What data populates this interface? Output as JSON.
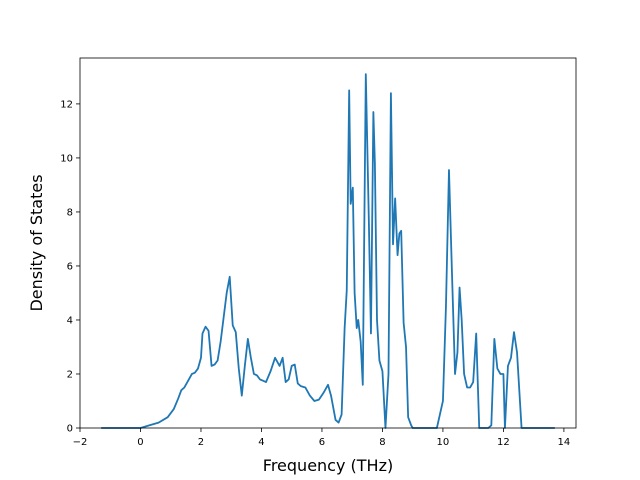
{
  "chart_data": {
    "type": "line",
    "title": "",
    "xlabel": "Frequency (THz)",
    "ylabel": "Density of States",
    "xlim": [
      -2.0,
      14.4
    ],
    "ylim": [
      0,
      13.7
    ],
    "xticks": [
      -2,
      0,
      2,
      4,
      6,
      8,
      10,
      12,
      14
    ],
    "yticks": [
      0,
      2,
      4,
      6,
      8,
      10,
      12
    ],
    "grid": false,
    "legend": "none",
    "line_color": "#1f77b4",
    "series": [
      {
        "x": [
          -1.3,
          -1.0,
          -0.5,
          0.0,
          0.3,
          0.6,
          0.9,
          1.1,
          1.25,
          1.35,
          1.45,
          1.55,
          1.7,
          1.8,
          1.9,
          2.0,
          2.05,
          2.15,
          2.25,
          2.35,
          2.45,
          2.55,
          2.65,
          2.75,
          2.85,
          2.95,
          3.05,
          3.15,
          3.25,
          3.35,
          3.45,
          3.55,
          3.65,
          3.75,
          3.85,
          3.95,
          4.05,
          4.15,
          4.3,
          4.45,
          4.6,
          4.7,
          4.8,
          4.9,
          5.0,
          5.1,
          5.2,
          5.3,
          5.45,
          5.6,
          5.75,
          5.9,
          6.05,
          6.2,
          6.3,
          6.45,
          6.55,
          6.65,
          6.75,
          6.82,
          6.9,
          6.95,
          7.02,
          7.08,
          7.15,
          7.2,
          7.28,
          7.35,
          7.45,
          7.55,
          7.62,
          7.7,
          7.75,
          7.82,
          7.9,
          8.0,
          8.1,
          8.2,
          8.28,
          8.35,
          8.42,
          8.5,
          8.56,
          8.62,
          8.7,
          8.78,
          8.85,
          8.95,
          9.0,
          9.1,
          9.2,
          9.4,
          9.6,
          9.8,
          10.0,
          10.1,
          10.2,
          10.3,
          10.4,
          10.48,
          10.55,
          10.62,
          10.7,
          10.8,
          10.9,
          11.0,
          11.1,
          11.2,
          11.3,
          11.5,
          11.6,
          11.7,
          11.8,
          11.9,
          12.0,
          12.05,
          12.15,
          12.25,
          12.35,
          12.45,
          12.6,
          13.0,
          13.5,
          13.7
        ],
        "y": [
          0,
          0,
          0,
          0,
          0.1,
          0.2,
          0.4,
          0.7,
          1.1,
          1.4,
          1.5,
          1.7,
          2.0,
          2.05,
          2.2,
          2.6,
          3.5,
          3.75,
          3.6,
          2.3,
          2.35,
          2.5,
          3.2,
          4.1,
          5.0,
          5.6,
          3.8,
          3.55,
          2.2,
          1.2,
          2.3,
          3.3,
          2.6,
          2.0,
          1.95,
          1.8,
          1.75,
          1.7,
          2.1,
          2.6,
          2.3,
          2.6,
          1.7,
          1.8,
          2.3,
          2.35,
          1.65,
          1.55,
          1.5,
          1.2,
          1.0,
          1.05,
          1.3,
          1.6,
          1.2,
          0.3,
          0.2,
          0.5,
          3.7,
          5.1,
          12.5,
          8.3,
          8.9,
          5.0,
          3.7,
          4.0,
          3.2,
          1.6,
          13.1,
          7.7,
          3.5,
          11.7,
          9.8,
          4.0,
          2.5,
          2.1,
          0,
          2.0,
          12.4,
          6.8,
          8.5,
          6.4,
          7.2,
          7.3,
          3.9,
          3.0,
          0.4,
          0.1,
          0,
          0,
          0,
          0,
          0,
          0,
          1.0,
          4.5,
          9.55,
          5.7,
          2.0,
          2.8,
          5.2,
          4.0,
          2.0,
          1.5,
          1.5,
          1.7,
          3.5,
          0,
          0,
          0,
          0.1,
          3.3,
          2.2,
          2.0,
          2.0,
          0,
          2.3,
          2.6,
          3.55,
          2.8,
          0,
          0,
          0,
          0
        ]
      }
    ]
  }
}
